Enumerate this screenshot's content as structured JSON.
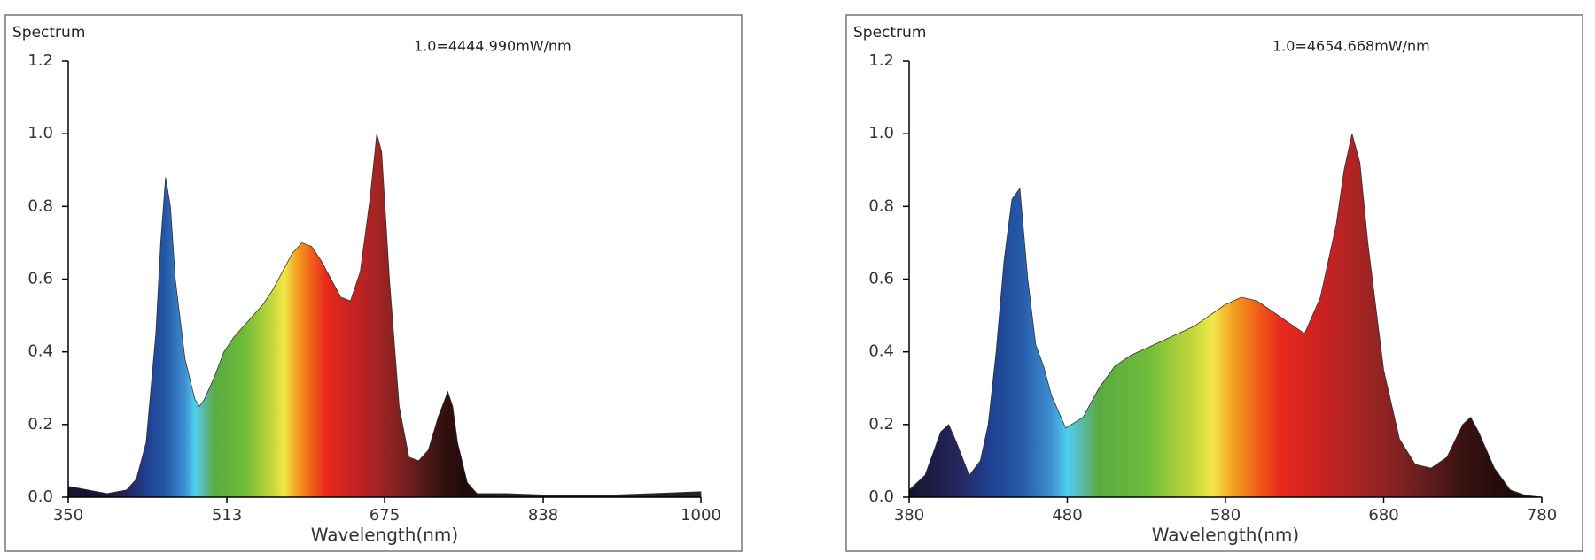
{
  "chart_data": [
    {
      "type": "area",
      "title": "Spectrum",
      "annotation": "1.0=4444.990mW/nm",
      "x_label": "Wavelength(nm)",
      "x": [
        350,
        370,
        390,
        410,
        420,
        430,
        440,
        445,
        450,
        455,
        460,
        470,
        480,
        485,
        490,
        500,
        510,
        520,
        530,
        540,
        550,
        560,
        570,
        580,
        590,
        600,
        610,
        620,
        630,
        640,
        650,
        660,
        667,
        672,
        680,
        690,
        700,
        710,
        720,
        730,
        740,
        745,
        750,
        760,
        770,
        780,
        800,
        850,
        900,
        950,
        1000
      ],
      "values": [
        0.03,
        0.02,
        0.01,
        0.02,
        0.05,
        0.15,
        0.45,
        0.7,
        0.88,
        0.8,
        0.6,
        0.38,
        0.27,
        0.25,
        0.27,
        0.33,
        0.4,
        0.44,
        0.47,
        0.5,
        0.53,
        0.57,
        0.62,
        0.67,
        0.7,
        0.69,
        0.65,
        0.6,
        0.55,
        0.54,
        0.62,
        0.82,
        1.0,
        0.95,
        0.6,
        0.25,
        0.11,
        0.1,
        0.13,
        0.22,
        0.29,
        0.25,
        0.15,
        0.04,
        0.01,
        0.01,
        0.01,
        0.005,
        0.005,
        0.01,
        0.015
      ],
      "xlim": [
        350,
        1000
      ],
      "xticks": [
        350,
        513,
        675,
        838,
        1000
      ],
      "ylim": [
        0,
        1.2
      ],
      "yticks": [
        {
          "value": 0,
          "label": "0.0"
        },
        0.2,
        0.4,
        0.6,
        0.8,
        {
          "value": 1,
          "label": "1.0"
        },
        1.2
      ]
    },
    {
      "type": "area",
      "title": "Spectrum",
      "annotation": "1.0=4654.668mW/nm",
      "x_label": "Wavelength(nm)",
      "x": [
        380,
        390,
        395,
        400,
        405,
        410,
        418,
        425,
        430,
        435,
        440,
        445,
        450,
        455,
        460,
        465,
        470,
        479,
        490,
        500,
        510,
        520,
        540,
        560,
        580,
        590,
        600,
        610,
        620,
        630,
        640,
        650,
        655,
        660,
        665,
        670,
        680,
        690,
        700,
        710,
        720,
        730,
        735,
        740,
        750,
        760,
        770,
        780
      ],
      "values": [
        0.02,
        0.06,
        0.12,
        0.18,
        0.2,
        0.15,
        0.06,
        0.1,
        0.2,
        0.4,
        0.65,
        0.82,
        0.85,
        0.6,
        0.42,
        0.36,
        0.28,
        0.19,
        0.22,
        0.3,
        0.36,
        0.39,
        0.43,
        0.47,
        0.53,
        0.55,
        0.54,
        0.51,
        0.48,
        0.45,
        0.55,
        0.75,
        0.9,
        1.0,
        0.92,
        0.7,
        0.35,
        0.16,
        0.09,
        0.08,
        0.11,
        0.2,
        0.22,
        0.18,
        0.08,
        0.02,
        0.005,
        0.0
      ],
      "xlim": [
        380,
        780
      ],
      "xticks": [
        380,
        480,
        580,
        680,
        780
      ],
      "ylim": [
        0,
        1.2
      ],
      "yticks": [
        {
          "value": 0,
          "label": "0.0"
        },
        0.2,
        0.4,
        0.6,
        0.8,
        {
          "value": 1,
          "label": "1.0"
        },
        1.2
      ]
    }
  ]
}
